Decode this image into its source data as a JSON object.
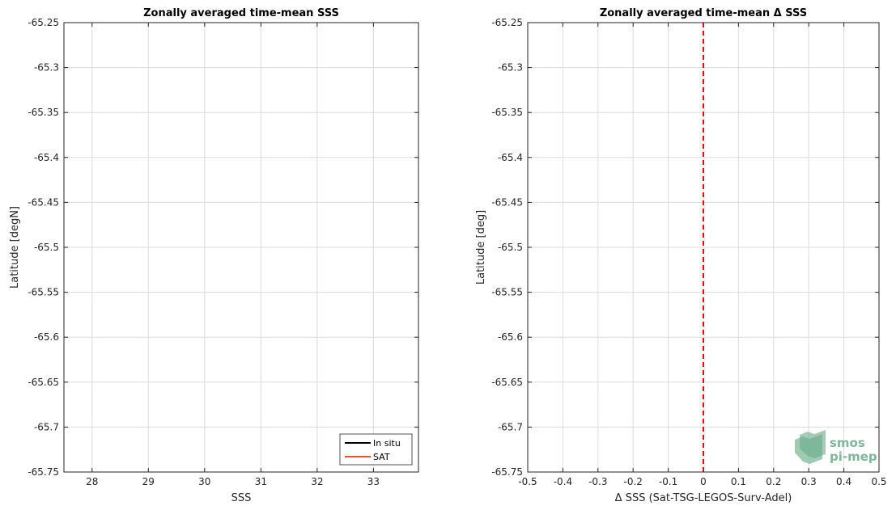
{
  "chart_data": [
    {
      "type": "line",
      "title": "Zonally averaged time-mean SSS",
      "xlabel": "SSS",
      "ylabel": "Latitude [degN]",
      "xlim": [
        27.5,
        33.8
      ],
      "ylim": [
        -65.75,
        -65.25
      ],
      "xticks": [
        28,
        29,
        30,
        31,
        32,
        33
      ],
      "yticks": [
        -65.25,
        -65.3,
        -65.35,
        -65.4,
        -65.45,
        -65.5,
        -65.55,
        -65.6,
        -65.65,
        -65.7,
        -65.75
      ],
      "grid": true,
      "legend_position": "bottom-right",
      "series": [
        {
          "name": "In situ",
          "color": "#000000",
          "points": []
        },
        {
          "name": "SAT",
          "color": "#e8541c",
          "points": []
        }
      ]
    },
    {
      "type": "line",
      "title": "Zonally averaged time-mean Δ SSS",
      "xlabel": "Δ SSS (Sat-TSG-LEGOS-Surv-Adel)",
      "ylabel": "Latitude [deg]",
      "xlim": [
        -0.5,
        0.5
      ],
      "ylim": [
        -65.75,
        -65.25
      ],
      "xticks": [
        -0.5,
        -0.4,
        -0.3,
        -0.2,
        -0.1,
        0,
        0.1,
        0.2,
        0.3,
        0.4,
        0.5
      ],
      "yticks": [
        -65.25,
        -65.3,
        -65.35,
        -65.4,
        -65.45,
        -65.5,
        -65.55,
        -65.6,
        -65.65,
        -65.7,
        -65.75
      ],
      "grid": true,
      "reference_line": {
        "x": 0,
        "color": "#ff0000",
        "style": "dashed"
      }
    }
  ],
  "logo": {
    "line1": "smos",
    "line2": "pi-mep",
    "color": "#7fb79a"
  }
}
